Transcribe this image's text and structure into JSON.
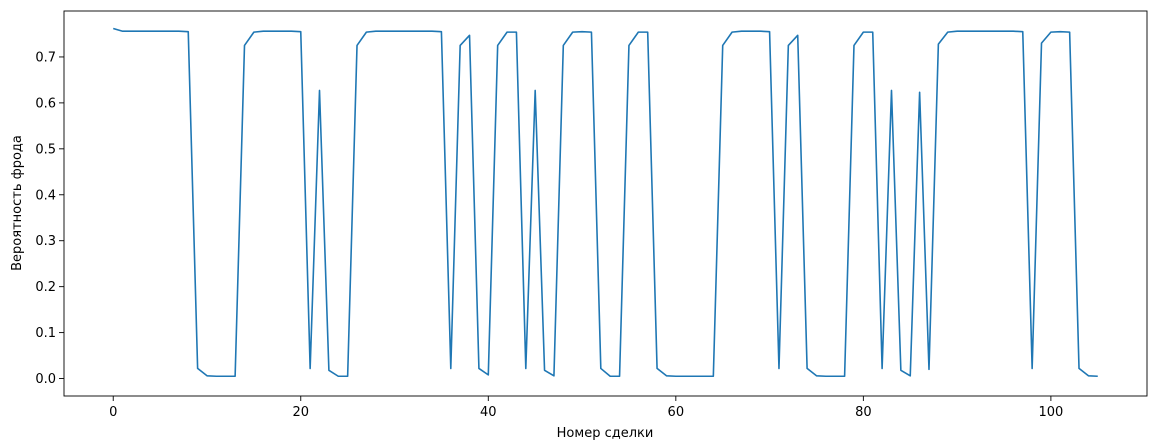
{
  "chart_data": {
    "type": "line",
    "title": "",
    "xlabel": "Номер сделки",
    "ylabel": "Вероятность фрода",
    "xlim": [
      -5.25,
      110.25
    ],
    "ylim": [
      -0.038,
      0.8
    ],
    "grid": false,
    "line_color": "#1f77b4",
    "x_ticks": [
      {
        "value": 0,
        "label": "0"
      },
      {
        "value": 20,
        "label": "20"
      },
      {
        "value": 40,
        "label": "40"
      },
      {
        "value": 60,
        "label": "60"
      },
      {
        "value": 80,
        "label": "80"
      },
      {
        "value": 100,
        "label": "100"
      }
    ],
    "y_ticks": [
      {
        "value": 0.0,
        "label": "0.0"
      },
      {
        "value": 0.1,
        "label": "0.1"
      },
      {
        "value": 0.2,
        "label": "0.2"
      },
      {
        "value": 0.3,
        "label": "0.3"
      },
      {
        "value": 0.4,
        "label": "0.4"
      },
      {
        "value": 0.5,
        "label": "0.5"
      },
      {
        "value": 0.6,
        "label": "0.6"
      },
      {
        "value": 0.7,
        "label": "0.7"
      }
    ],
    "series": [
      {
        "x": [
          0,
          1,
          2,
          3,
          4,
          5,
          6,
          7,
          8,
          9,
          10,
          11,
          12,
          13,
          14,
          15,
          16,
          17,
          18,
          19,
          20,
          21,
          22,
          23,
          24,
          25,
          26,
          27,
          28,
          29,
          30,
          31,
          32,
          33,
          34,
          35,
          36,
          37,
          38,
          39,
          40,
          41,
          42,
          43,
          44,
          45,
          46,
          47,
          48,
          49,
          50,
          51,
          52,
          53,
          54,
          55,
          56,
          57,
          58,
          59,
          60,
          61,
          62,
          63,
          64,
          65,
          66,
          67,
          68,
          69,
          70,
          71,
          72,
          73,
          74,
          75,
          76,
          77,
          78,
          79,
          80,
          81,
          82,
          83,
          84,
          85,
          86,
          87,
          88,
          89,
          90,
          91,
          92,
          93,
          94,
          95,
          96,
          97,
          98,
          99,
          100,
          101,
          102,
          103,
          104,
          105
        ],
        "values": [
          0.762,
          0.756,
          0.756,
          0.756,
          0.756,
          0.756,
          0.756,
          0.756,
          0.755,
          0.022,
          0.006,
          0.005,
          0.005,
          0.005,
          0.725,
          0.754,
          0.756,
          0.756,
          0.756,
          0.756,
          0.755,
          0.022,
          0.627,
          0.018,
          0.005,
          0.005,
          0.725,
          0.754,
          0.756,
          0.756,
          0.756,
          0.756,
          0.756,
          0.756,
          0.756,
          0.755,
          0.022,
          0.725,
          0.747,
          0.022,
          0.008,
          0.725,
          0.754,
          0.754,
          0.022,
          0.627,
          0.018,
          0.006,
          0.725,
          0.754,
          0.755,
          0.754,
          0.022,
          0.005,
          0.005,
          0.725,
          0.754,
          0.754,
          0.022,
          0.006,
          0.005,
          0.005,
          0.005,
          0.005,
          0.005,
          0.725,
          0.754,
          0.756,
          0.756,
          0.756,
          0.755,
          0.022,
          0.725,
          0.747,
          0.022,
          0.006,
          0.005,
          0.005,
          0.005,
          0.725,
          0.754,
          0.754,
          0.022,
          0.627,
          0.018,
          0.006,
          0.623,
          0.02,
          0.728,
          0.754,
          0.756,
          0.756,
          0.756,
          0.756,
          0.756,
          0.756,
          0.756,
          0.755,
          0.022,
          0.73,
          0.754,
          0.755,
          0.754,
          0.022,
          0.006,
          0.005
        ]
      }
    ]
  }
}
